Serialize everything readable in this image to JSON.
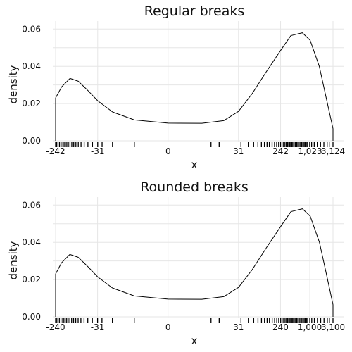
{
  "chart_data": [
    {
      "type": "area",
      "title": "Regular breaks",
      "xlabel": "x",
      "ylabel": "density",
      "x_scale": "pseudo-log",
      "xlim": [
        -242,
        3124
      ],
      "ylim": [
        0,
        0.062
      ],
      "y_ticks": [
        "0.00",
        "0.02",
        "0.04",
        "0.06"
      ],
      "y_tick_values": [
        0,
        0.02,
        0.04,
        0.06
      ],
      "x_ticks": [
        "-242",
        "-31",
        "0",
        "31",
        "242",
        "1,023",
        "3,124"
      ],
      "grid": true,
      "series": [
        {
          "x": [
            -242,
            -180,
            -120,
            -80,
            -50,
            -31,
            -15,
            -5,
            0,
            5,
            15,
            31,
            60,
            120,
            242,
            400,
            700,
            1023,
            1600,
            2200,
            3124
          ],
          "y": [
            0.023,
            0.029,
            0.0335,
            0.032,
            0.027,
            0.0215,
            0.0155,
            0.0112,
            0.0095,
            0.0094,
            0.0108,
            0.0158,
            0.0252,
            0.037,
            0.0485,
            0.0565,
            0.058,
            0.054,
            0.04,
            0.024,
            0.0065
          ]
        }
      ],
      "rug_values": [
        -242,
        -230,
        -215,
        -200,
        -185,
        -170,
        -160,
        -150,
        -140,
        -130,
        -120,
        -110,
        -100,
        -90,
        -80,
        -70,
        -60,
        -50,
        -40,
        -31,
        -25,
        -15,
        -5,
        8,
        12,
        35,
        50,
        65,
        80,
        95,
        110,
        125,
        140,
        160,
        180,
        200,
        220,
        242,
        260,
        280,
        300,
        320,
        340,
        360,
        380,
        400,
        420,
        440,
        470,
        500,
        530,
        560,
        600,
        640,
        680,
        720,
        760,
        800,
        850,
        900,
        1000,
        1100,
        1250,
        1450,
        1700,
        2000,
        2350,
        2600,
        3124
      ]
    },
    {
      "type": "area",
      "title": "Rounded breaks",
      "xlabel": "x",
      "ylabel": "density",
      "x_scale": "pseudo-log",
      "xlim": [
        -240,
        3100
      ],
      "ylim": [
        0,
        0.062
      ],
      "y_ticks": [
        "0.00",
        "0.02",
        "0.04",
        "0.06"
      ],
      "y_tick_values": [
        0,
        0.02,
        0.04,
        0.06
      ],
      "x_ticks": [
        "-240",
        "-31",
        "0",
        "31",
        "240",
        "1,000",
        "3,100"
      ],
      "grid": true,
      "series": [
        {
          "x": [
            -242,
            -180,
            -120,
            -80,
            -50,
            -31,
            -15,
            -5,
            0,
            5,
            15,
            31,
            60,
            120,
            242,
            400,
            700,
            1023,
            1600,
            2200,
            3124
          ],
          "y": [
            0.023,
            0.029,
            0.0335,
            0.032,
            0.027,
            0.0215,
            0.0155,
            0.0112,
            0.0095,
            0.0094,
            0.0108,
            0.0158,
            0.0252,
            0.037,
            0.0485,
            0.0565,
            0.058,
            0.054,
            0.04,
            0.024,
            0.0065
          ]
        }
      ],
      "rug_values": [
        -242,
        -230,
        -215,
        -200,
        -185,
        -170,
        -160,
        -150,
        -140,
        -130,
        -120,
        -110,
        -100,
        -90,
        -80,
        -70,
        -60,
        -50,
        -40,
        -31,
        -25,
        -15,
        -5,
        8,
        12,
        35,
        50,
        65,
        80,
        95,
        110,
        125,
        140,
        160,
        180,
        200,
        220,
        242,
        260,
        280,
        300,
        320,
        340,
        360,
        380,
        400,
        420,
        440,
        470,
        500,
        530,
        560,
        600,
        640,
        680,
        720,
        760,
        800,
        850,
        900,
        1000,
        1100,
        1250,
        1450,
        1700,
        2000,
        2350,
        2600,
        3124
      ]
    }
  ]
}
